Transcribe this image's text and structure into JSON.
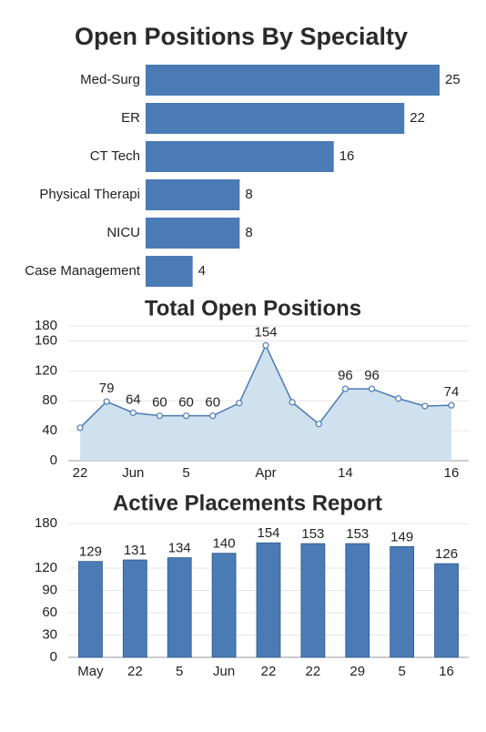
{
  "chart_data": [
    {
      "type": "hbar",
      "title": "Open Positions By Specialty",
      "categories": [
        "Med-Surg",
        "ER",
        "CT Tech",
        "Physical Therapi",
        "NICU",
        "Case Management"
      ],
      "values": [
        25,
        22,
        16,
        8,
        8,
        4
      ],
      "color": "#4a7bb5"
    },
    {
      "type": "line",
      "title": "Total Open Positions",
      "categories": [
        "22",
        null,
        "Jun",
        null,
        "5",
        null,
        null,
        "Apr",
        null,
        null,
        "14",
        null,
        null,
        null,
        "16"
      ],
      "values": [
        44,
        79,
        64,
        60,
        60,
        60,
        77,
        154,
        78,
        49,
        96,
        96,
        83,
        73,
        74
      ],
      "value_labels": [
        null,
        "79",
        "64",
        "60",
        "60",
        "60",
        null,
        "154",
        null,
        null,
        "96",
        "96",
        null,
        null,
        "74"
      ],
      "color": "#4a7bb5",
      "fill": "#cfe0ef",
      "ylim": [
        0,
        180
      ],
      "yticks": [
        0,
        40,
        80,
        120,
        160,
        180
      ],
      "grid": true
    },
    {
      "type": "bar",
      "title": "Active Placements Report",
      "categories": [
        "May",
        "22",
        "5",
        "Jun",
        "22",
        "22",
        "29",
        "5",
        "16"
      ],
      "values": [
        129,
        131,
        134,
        140,
        154,
        153,
        153,
        149,
        126
      ],
      "color": "#4a7bb5",
      "ylim": [
        0,
        180
      ],
      "yticks": [
        0,
        30,
        60,
        90,
        120,
        180
      ],
      "grid": true
    }
  ]
}
